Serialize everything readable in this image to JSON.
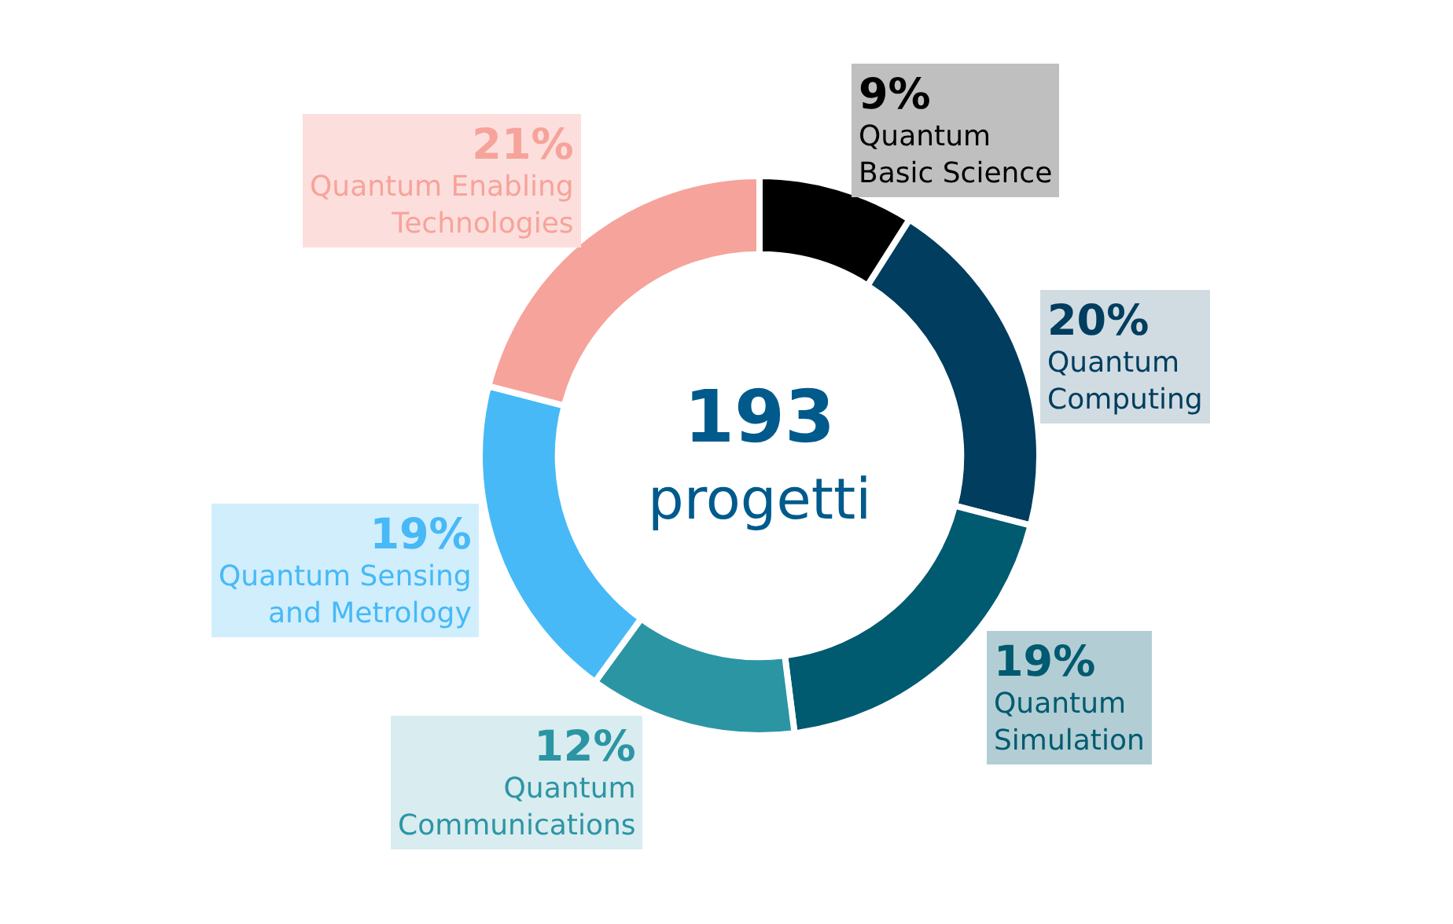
{
  "chart_data": {
    "type": "donut",
    "categories": [
      "Quantum Basic Science",
      "Quantum Computing",
      "Quantum Simulation",
      "Quantum Communications",
      "Quantum Sensing and Metrology",
      "Quantum Enabling Technologies"
    ],
    "values": [
      9,
      20,
      19,
      12,
      19,
      21
    ],
    "value_labels": [
      "9%",
      "20%",
      "19%",
      "12%",
      "19%",
      "21%"
    ],
    "colors": [
      "#000000",
      "#003d5e",
      "#005a70",
      "#2b95a4",
      "#47b9f6",
      "#f6a39b"
    ],
    "annotations": [
      "193",
      "progetti"
    ],
    "legend": false
  }
}
